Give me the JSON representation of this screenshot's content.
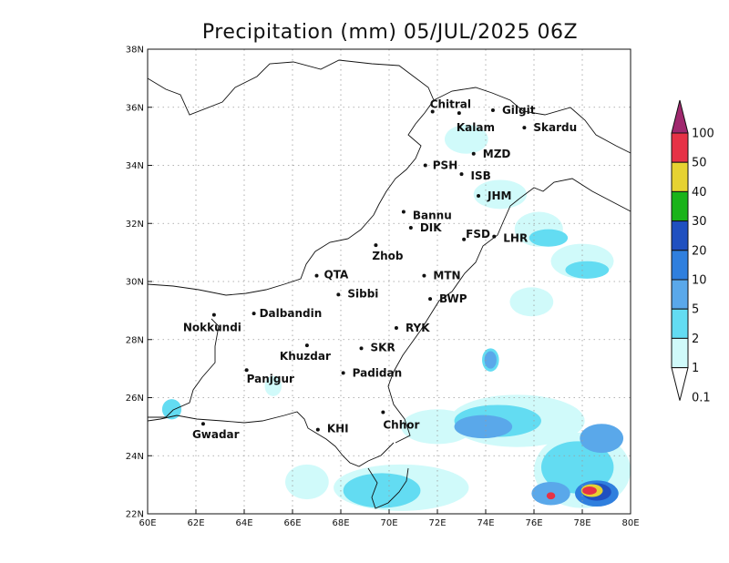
{
  "map": {
    "title": "Precipitation (mm) 05/JUL/2025 06Z",
    "lon_labels": [
      "60E",
      "62E",
      "64E",
      "66E",
      "68E",
      "70E",
      "72E",
      "74E",
      "76E",
      "78E",
      "80E"
    ],
    "lon_values": [
      60,
      62,
      64,
      66,
      68,
      70,
      72,
      74,
      76,
      78,
      80
    ],
    "lat_labels": [
      "22N",
      "24N",
      "26N",
      "28N",
      "30N",
      "32N",
      "34N",
      "36N",
      "38N"
    ],
    "lat_values": [
      22,
      24,
      26,
      28,
      30,
      32,
      34,
      36,
      38
    ],
    "extent": {
      "lon_min": 60,
      "lon_max": 80,
      "lat_min": 22,
      "lat_max": 38
    }
  },
  "cities": [
    {
      "name": "Chitral",
      "lon": 71.8,
      "lat": 35.85
    },
    {
      "name": "Gilgit",
      "lon": 74.3,
      "lat": 35.9
    },
    {
      "name": "Kalam",
      "lon": 72.9,
      "lat": 35.8
    },
    {
      "name": "Skardu",
      "lon": 75.6,
      "lat": 35.3
    },
    {
      "name": "MZD",
      "lon": 73.5,
      "lat": 34.4
    },
    {
      "name": "PSH",
      "lon": 71.5,
      "lat": 34.0
    },
    {
      "name": "ISB",
      "lon": 73.0,
      "lat": 33.7
    },
    {
      "name": "JHM",
      "lon": 73.7,
      "lat": 32.95
    },
    {
      "name": "Bannu",
      "lon": 70.6,
      "lat": 32.4
    },
    {
      "name": "DIK",
      "lon": 70.9,
      "lat": 31.85
    },
    {
      "name": "FSD",
      "lon": 73.1,
      "lat": 31.45
    },
    {
      "name": "LHR",
      "lon": 74.35,
      "lat": 31.55
    },
    {
      "name": "Zhob",
      "lon": 69.45,
      "lat": 31.25
    },
    {
      "name": "QTA",
      "lon": 67.0,
      "lat": 30.2
    },
    {
      "name": "MTN",
      "lon": 71.45,
      "lat": 30.2
    },
    {
      "name": "Sibbi",
      "lon": 67.9,
      "lat": 29.55
    },
    {
      "name": "BWP",
      "lon": 71.7,
      "lat": 29.4
    },
    {
      "name": "Nokkundi",
      "lon": 62.75,
      "lat": 28.85
    },
    {
      "name": "Dalbandin",
      "lon": 64.4,
      "lat": 28.9
    },
    {
      "name": "RYK",
      "lon": 70.3,
      "lat": 28.4
    },
    {
      "name": "Khuzdar",
      "lon": 66.6,
      "lat": 27.8
    },
    {
      "name": "SKR",
      "lon": 68.85,
      "lat": 27.7
    },
    {
      "name": "Panjgur",
      "lon": 64.1,
      "lat": 26.95
    },
    {
      "name": "Padidan",
      "lon": 68.1,
      "lat": 26.85
    },
    {
      "name": "Chhor",
      "lon": 69.75,
      "lat": 25.5
    },
    {
      "name": "Gwadar",
      "lon": 62.3,
      "lat": 25.1
    },
    {
      "name": "KHI",
      "lon": 67.05,
      "lat": 24.9
    }
  ],
  "colorbar": {
    "levels": [
      "0.1",
      "1",
      "2",
      "5",
      "10",
      "20",
      "30",
      "40",
      "50",
      "100"
    ],
    "colors": [
      "#a0a0a0",
      "#d0fafa",
      "#63dcf2",
      "#5aa8ea",
      "#2f7fde",
      "#2050c0",
      "#1ab31a",
      "#e6d232",
      "#e63246",
      "#a0286e"
    ]
  },
  "precip_cells": [
    {
      "level": 1,
      "lon": 73.2,
      "lat": 34.9,
      "rx": 0.9,
      "ry": 0.5
    },
    {
      "level": 1,
      "lon": 74.6,
      "lat": 33.0,
      "rx": 1.1,
      "ry": 0.5
    },
    {
      "level": 1,
      "lon": 76.2,
      "lat": 31.8,
      "rx": 1.0,
      "ry": 0.6
    },
    {
      "level": 1,
      "lon": 78.0,
      "lat": 30.7,
      "rx": 1.3,
      "ry": 0.6
    },
    {
      "level": 2,
      "lon": 76.6,
      "lat": 31.5,
      "rx": 0.8,
      "ry": 0.3
    },
    {
      "level": 2,
      "lon": 78.2,
      "lat": 30.4,
      "rx": 0.9,
      "ry": 0.3
    },
    {
      "level": 1,
      "lon": 75.9,
      "lat": 29.3,
      "rx": 0.9,
      "ry": 0.5
    },
    {
      "level": 2,
      "lon": 74.2,
      "lat": 27.3,
      "rx": 0.35,
      "ry": 0.4
    },
    {
      "level": 2,
      "lon": 61.0,
      "lat": 25.6,
      "rx": 0.4,
      "ry": 0.35
    },
    {
      "level": 1,
      "lon": 65.2,
      "lat": 26.4,
      "rx": 0.35,
      "ry": 0.35
    },
    {
      "level": 1,
      "lon": 75.3,
      "lat": 25.2,
      "rx": 2.8,
      "ry": 0.9
    },
    {
      "level": 1,
      "lon": 72.0,
      "lat": 25.0,
      "rx": 1.5,
      "ry": 0.6
    },
    {
      "level": 1,
      "lon": 70.5,
      "lat": 22.9,
      "rx": 2.8,
      "ry": 0.8
    },
    {
      "level": 1,
      "lon": 78.0,
      "lat": 23.5,
      "rx": 2.0,
      "ry": 1.3
    },
    {
      "level": 1,
      "lon": 66.6,
      "lat": 23.1,
      "rx": 0.9,
      "ry": 0.6
    },
    {
      "level": 2,
      "lon": 74.5,
      "lat": 25.2,
      "rx": 1.8,
      "ry": 0.55
    },
    {
      "level": 2,
      "lon": 69.7,
      "lat": 22.8,
      "rx": 1.6,
      "ry": 0.6
    },
    {
      "level": 2,
      "lon": 77.8,
      "lat": 23.6,
      "rx": 1.5,
      "ry": 0.9
    },
    {
      "level": 3,
      "lon": 73.9,
      "lat": 25.0,
      "rx": 1.2,
      "ry": 0.4
    },
    {
      "level": 3,
      "lon": 78.8,
      "lat": 24.6,
      "rx": 0.9,
      "ry": 0.5
    },
    {
      "level": 3,
      "lon": 76.7,
      "lat": 22.7,
      "rx": 0.8,
      "ry": 0.4
    },
    {
      "level": 3,
      "lon": 74.2,
      "lat": 27.3,
      "rx": 0.25,
      "ry": 0.3
    },
    {
      "level": 4,
      "lon": 78.6,
      "lat": 22.7,
      "rx": 0.9,
      "ry": 0.45
    },
    {
      "level": 5,
      "lon": 78.6,
      "lat": 22.75,
      "rx": 0.6,
      "ry": 0.3
    },
    {
      "level": 7,
      "lon": 78.4,
      "lat": 22.8,
      "rx": 0.45,
      "ry": 0.22
    },
    {
      "level": 8,
      "lon": 78.3,
      "lat": 22.8,
      "rx": 0.3,
      "ry": 0.14
    },
    {
      "level": 8,
      "lon": 76.7,
      "lat": 22.62,
      "rx": 0.18,
      "ry": 0.12
    }
  ]
}
